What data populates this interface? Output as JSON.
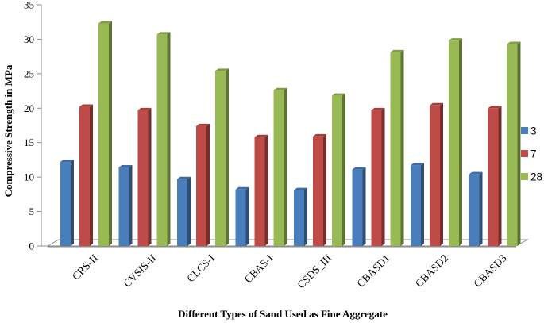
{
  "chart_data": {
    "type": "bar",
    "title": "",
    "xlabel": "Different Types of Sand Used as Fine Aggregate",
    "ylabel": "Compressive Strength in MPa",
    "ylim": [
      0,
      35
    ],
    "yticks": [
      0,
      5,
      10,
      15,
      20,
      25,
      30,
      35
    ],
    "grid": false,
    "legend_position": "right",
    "categories": [
      "CRS-II",
      "CVSIS-II",
      "CLCS-I",
      "CBAS-I",
      "CSDS_III",
      "CBASD1",
      "CBASD2",
      "CBASD3"
    ],
    "series": [
      {
        "name": "3",
        "color": "#4a7ebb",
        "values": [
          12.2,
          11.4,
          9.7,
          8.2,
          8.1,
          11.1,
          11.7,
          10.4
        ]
      },
      {
        "name": "7",
        "color": "#be4b48",
        "values": [
          20.2,
          19.7,
          17.4,
          15.8,
          15.9,
          19.7,
          20.4,
          20.0
        ]
      },
      {
        "name": "28",
        "color": "#98b954",
        "values": [
          32.3,
          30.7,
          25.4,
          22.6,
          21.8,
          28.1,
          29.8,
          29.3
        ]
      }
    ]
  }
}
